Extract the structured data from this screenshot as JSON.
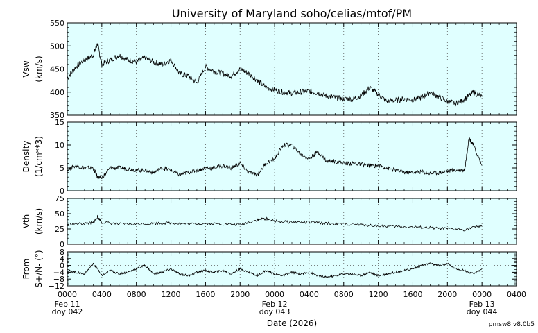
{
  "chart_data": {
    "type": "line",
    "title": "University of Maryland  soho/celias/mtof/PM",
    "xlabel": "Date (2026)",
    "footer": "pmsw8 v8.0b5",
    "background_color": "#e0ffff",
    "line_color": "#000000",
    "x_range_hours": [
      0,
      52
    ],
    "x_tick_labels": [
      "0000",
      "0400",
      "0800",
      "1200",
      "1600",
      "2000",
      "0000",
      "0400",
      "0800",
      "1200",
      "1600",
      "2000",
      "0000",
      "0400"
    ],
    "x_date_labels": [
      {
        "hour": 0,
        "date": "Feb 11",
        "doy": "doy 042"
      },
      {
        "hour": 24,
        "date": "Feb 12",
        "doy": "doy 043"
      },
      {
        "hour": 48,
        "date": "Feb 13",
        "doy": "doy 044"
      }
    ],
    "grid": "vertical dotted every 4 hours",
    "panels": [
      {
        "ylabel": [
          "Vsw",
          "(km/s)"
        ],
        "ylim": [
          350,
          550
        ],
        "yticks": [
          350,
          400,
          450,
          500,
          550
        ],
        "series": {
          "x": [
            0,
            1,
            2,
            3,
            3.5,
            4,
            5,
            6,
            7,
            8,
            9,
            10,
            11,
            12,
            13,
            14,
            15,
            16,
            17,
            18,
            19,
            20,
            21,
            22,
            23,
            24,
            25,
            26,
            27,
            28,
            29,
            30,
            31,
            32,
            33,
            34,
            35,
            36,
            37,
            38,
            39,
            40,
            41,
            42,
            43,
            44,
            45,
            46,
            47,
            48
          ],
          "y": [
            430,
            455,
            470,
            480,
            505,
            460,
            470,
            480,
            470,
            465,
            475,
            465,
            460,
            470,
            440,
            435,
            420,
            455,
            445,
            440,
            435,
            450,
            440,
            425,
            410,
            405,
            400,
            398,
            400,
            402,
            398,
            392,
            388,
            385,
            385,
            392,
            410,
            395,
            380,
            382,
            385,
            383,
            388,
            400,
            390,
            380,
            375,
            385,
            400,
            390
          ]
        }
      },
      {
        "ylabel": [
          "Density",
          "(1/cm**3)"
        ],
        "ylim": [
          0,
          15
        ],
        "yticks": [
          0,
          5,
          10,
          15
        ],
        "series": {
          "x": [
            0,
            1,
            2,
            3,
            3.5,
            4,
            5,
            6,
            7,
            8,
            9,
            10,
            11,
            12,
            13,
            14,
            15,
            16,
            17,
            18,
            19,
            20,
            21,
            22,
            23,
            24,
            25,
            26,
            27,
            28,
            29,
            30,
            31,
            32,
            33,
            34,
            35,
            36,
            37,
            38,
            39,
            40,
            41,
            42,
            43,
            44,
            45,
            46,
            46.5,
            47,
            48
          ],
          "y": [
            4.5,
            5.5,
            5,
            5,
            3,
            2.8,
            5,
            5,
            4.8,
            4.5,
            4.5,
            4,
            5,
            4.5,
            3.5,
            4,
            4.5,
            5,
            5,
            5.5,
            5,
            6,
            4,
            3.5,
            6,
            7,
            10,
            10,
            8,
            7,
            8.5,
            6.5,
            6.5,
            6,
            6,
            5.8,
            5.5,
            5.5,
            5,
            4.5,
            4,
            4,
            4.2,
            3.8,
            4,
            4.3,
            4.5,
            4.6,
            11.5,
            10,
            5.5
          ]
        }
      },
      {
        "ylabel": [
          "Vth",
          "(km/s)"
        ],
        "ylim": [
          0,
          75
        ],
        "yticks": [
          0,
          25,
          50,
          75
        ],
        "series": {
          "x": [
            0,
            2,
            3,
            3.5,
            4,
            6,
            8,
            10,
            12,
            14,
            16,
            18,
            20,
            22,
            23,
            24,
            26,
            28,
            30,
            32,
            34,
            36,
            38,
            40,
            42,
            44,
            46,
            48
          ],
          "y": [
            33,
            34,
            35,
            45,
            36,
            33,
            33,
            34,
            35,
            33,
            34,
            33,
            32,
            40,
            42,
            38,
            36,
            36,
            34,
            33,
            32,
            30,
            29,
            28,
            27,
            25,
            24,
            31
          ]
        }
      },
      {
        "ylabel": [
          "From",
          "S+/N- (°)"
        ],
        "ylim": [
          -12,
          8
        ],
        "yticks": [
          -12,
          -8,
          -4,
          0,
          4,
          8
        ],
        "tick_labels": [
          "−12",
          "−8",
          "−4",
          "0",
          "4",
          "8"
        ],
        "zero_line": true,
        "series": {
          "x": [
            0,
            1,
            2,
            3,
            3.5,
            4,
            5,
            6,
            7,
            8,
            9,
            10,
            11,
            12,
            13,
            14,
            15,
            16,
            17,
            18,
            19,
            20,
            21,
            22,
            23,
            24,
            25,
            26,
            27,
            28,
            29,
            30,
            31,
            32,
            33,
            34,
            35,
            36,
            37,
            38,
            39,
            40,
            41,
            42,
            43,
            44,
            45,
            46,
            47,
            48
          ],
          "y": [
            -3,
            -4,
            -5,
            1,
            -2,
            -6,
            -3,
            -5,
            -4,
            -2,
            0,
            -5,
            -4,
            -2,
            -5,
            -6,
            -4,
            -3,
            -4,
            -3,
            -5,
            -2,
            -4,
            -6,
            -3,
            -5,
            -6,
            -4,
            -5,
            -4,
            -6,
            -7,
            -6,
            -5,
            -5,
            -6,
            -4,
            -6,
            -5,
            -4,
            -3,
            -2,
            0,
            1,
            0,
            1,
            -2,
            -3,
            -5,
            -2
          ]
        }
      }
    ]
  }
}
